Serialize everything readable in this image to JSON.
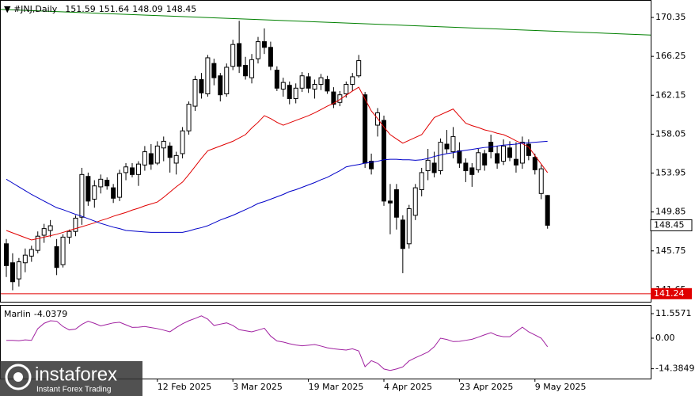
{
  "chart_data": {
    "type": "candlestick",
    "title": "#JNJ,Daily",
    "categories": [
      null,
      null,
      null,
      null,
      null,
      null,
      null,
      null,
      null,
      null,
      null,
      null,
      null,
      null,
      null,
      null,
      null,
      null,
      null,
      null,
      null,
      null,
      null,
      null,
      "12 Feb 2025",
      null,
      null,
      null,
      null,
      null,
      null,
      null,
      null,
      null,
      null,
      null,
      "3 Mar 2025",
      null,
      null,
      null,
      null,
      null,
      null,
      null,
      null,
      null,
      null,
      null,
      "19 Mar 2025",
      null,
      null,
      null,
      null,
      null,
      null,
      null,
      null,
      null,
      null,
      null,
      "4 Apr 2025",
      null,
      null,
      null,
      null,
      null,
      null,
      null,
      null,
      null,
      null,
      null,
      "23 Apr 2025",
      null,
      null,
      null,
      null,
      null,
      null,
      null,
      null,
      null,
      null,
      null,
      "9 May 2025",
      null,
      null
    ],
    "open": [
      146.5,
      144.5,
      142.8,
      144.5,
      145.2,
      145.8,
      147.4,
      147.9,
      146.2,
      144.3,
      147.2,
      147.8,
      149.3,
      153.6,
      151.2,
      152.5,
      153.2,
      152.4,
      151.4,
      154,
      154.5,
      153.8,
      154.8,
      156,
      155,
      156.6,
      156.8,
      155,
      156,
      158.4,
      161,
      163.8,
      162.3,
      165.5,
      164.2,
      162.3,
      165.2,
      167.6,
      165.3,
      164,
      166,
      167.8,
      167.2,
      164.8,
      162.8,
      163.2,
      161.8,
      162.9,
      164.1,
      162.8,
      163.3,
      163.8,
      162.5,
      161.4,
      162.3,
      163.3,
      164.2,
      162.2,
      155.2,
      159,
      159.5,
      151,
      152.2,
      149,
      146.5,
      149.5,
      152.2,
      154.2,
      155,
      154.2,
      157,
      156.2,
      156.3,
      155,
      154.5,
      154.3,
      156,
      157.2,
      156,
      155.2,
      156.6,
      155.4,
      155,
      157,
      155.6,
      151.8,
      151.59
    ],
    "high": [
      147,
      145.5,
      145,
      146,
      146.3,
      147.8,
      148.6,
      149,
      147,
      147.5,
      148,
      149.5,
      154.5,
      154,
      153.2,
      153.8,
      153.5,
      152.8,
      154.3,
      155,
      155,
      155.2,
      156.8,
      157,
      157.3,
      157.8,
      157.2,
      156.2,
      158.8,
      161.5,
      164.2,
      164.5,
      166.4,
      166,
      164.5,
      165.5,
      168,
      170,
      166.2,
      166.5,
      168.3,
      169.2,
      167.8,
      165.2,
      164,
      163.6,
      163.4,
      164.6,
      164.5,
      163.8,
      164.4,
      164.2,
      163,
      162.6,
      163.6,
      164.5,
      166.4,
      162.5,
      156,
      160.8,
      160,
      152.8,
      152.8,
      149.5,
      150.6,
      152.8,
      154.5,
      156.5,
      156.2,
      157.6,
      158.5,
      158.8,
      157.2,
      155.5,
      155,
      156.5,
      156.4,
      158,
      156.8,
      157.5,
      157.3,
      157.2,
      157.8,
      157.5,
      156,
      154.8,
      151.64
    ],
    "low": [
      143,
      141.6,
      142,
      143.5,
      144.6,
      145.5,
      146.6,
      147.2,
      143.2,
      144,
      146.5,
      147.3,
      148.5,
      150.5,
      150.3,
      151.8,
      152.2,
      150.8,
      151,
      153.2,
      153.5,
      152.6,
      154.2,
      154.3,
      154.8,
      155.2,
      154,
      153.8,
      155.5,
      158,
      160.5,
      161.8,
      162,
      163.2,
      161.5,
      162,
      164.8,
      164.5,
      163.8,
      163.4,
      165.5,
      166.5,
      164.8,
      162.6,
      162,
      161.2,
      161.3,
      162.5,
      162.4,
      161.8,
      162.7,
      162.3,
      160.8,
      161,
      161.9,
      162.6,
      164,
      154.5,
      153.8,
      157.8,
      150.5,
      147.5,
      148,
      143.4,
      146,
      149,
      151.5,
      153.2,
      153.5,
      153.8,
      156,
      155.5,
      154.5,
      153,
      152.5,
      154,
      154.2,
      155.5,
      154.4,
      154.8,
      155.2,
      154,
      154.4,
      155.3,
      153.8,
      151.2,
      148.09
    ],
    "close": [
      144.2,
      142.5,
      144.6,
      145.3,
      145.9,
      147.3,
      148.1,
      148.4,
      144,
      147.2,
      147.8,
      149.2,
      153.8,
      151,
      152.6,
      153.3,
      152.6,
      151.3,
      153.9,
      154.6,
      153.8,
      154.9,
      156.2,
      154.9,
      156.8,
      157.3,
      155.6,
      155.8,
      158.4,
      161.2,
      163.8,
      162.4,
      166.1,
      164,
      162.2,
      165.1,
      167.5,
      165.2,
      164.2,
      165.9,
      167.8,
      167.2,
      165.2,
      162.9,
      163.5,
      161.8,
      162.9,
      164.2,
      162.9,
      163.3,
      164,
      162.6,
      161.2,
      162.2,
      163.3,
      164.1,
      165.8,
      155,
      154.4,
      160.3,
      151,
      150.8,
      149.3,
      146,
      150.2,
      152.4,
      154,
      155.3,
      154,
      157.2,
      156.5,
      157.8,
      155,
      154.2,
      153.8,
      156.1,
      154.8,
      156.2,
      155,
      156.8,
      155.6,
      154.8,
      157.2,
      155.8,
      154.3,
      154.4,
      148.45
    ],
    "up_color": "#ffffff",
    "down_color": "#000000",
    "ylim": [
      140.39,
      172.19
    ],
    "yticks": [
      170.35,
      166.25,
      162.15,
      158.05,
      153.95,
      149.85,
      145.75,
      141.65
    ],
    "series": [
      {
        "color": "#e00000",
        "values": [
          147.9,
          147.65,
          147.4,
          147.15,
          146.9,
          147.05,
          147.2,
          147.35,
          147.5,
          147.7,
          147.9,
          148.1,
          148.3,
          148.5,
          148.7,
          148.95,
          149.15,
          149.4,
          149.6,
          149.8,
          150.05,
          150.25,
          150.5,
          150.7,
          150.9,
          151.4,
          151.95,
          152.5,
          153,
          153.8,
          154.65,
          155.5,
          156.3,
          156.55,
          156.8,
          157.05,
          157.3,
          157.65,
          158,
          158.7,
          159.3,
          160,
          159.7,
          159.3,
          159,
          159.25,
          159.5,
          159.75,
          160,
          160.3,
          160.65,
          161,
          161.3,
          161.7,
          162.15,
          162.6,
          163,
          161.75,
          160.5,
          159.7,
          158.8,
          158,
          157.55,
          157.1,
          157.4,
          157.7,
          158,
          158.9,
          159.8,
          160.1,
          160.4,
          160.7,
          159.95,
          159.2,
          158.95,
          158.75,
          158.5,
          158.35,
          158.15,
          158,
          157.7,
          157.35,
          157.05,
          156.7,
          155.8,
          154.9,
          154
        ]
      },
      {
        "color": "#0000c8",
        "values": [
          153.3,
          152.9,
          152.5,
          152.1,
          151.7,
          151.35,
          151,
          150.65,
          150.3,
          150.1,
          149.85,
          149.6,
          149.4,
          149.15,
          148.9,
          148.65,
          148.45,
          148.25,
          148.1,
          147.9,
          147.85,
          147.8,
          147.75,
          147.7,
          147.7,
          147.7,
          147.7,
          147.7,
          147.7,
          147.85,
          148.05,
          148.2,
          148.4,
          148.7,
          149,
          149.25,
          149.5,
          149.8,
          150.1,
          150.4,
          150.75,
          150.95,
          151.2,
          151.45,
          151.7,
          152,
          152.2,
          152.45,
          152.7,
          152.95,
          153.25,
          153.5,
          153.85,
          154.2,
          154.6,
          154.75,
          154.85,
          155,
          155.1,
          155.2,
          155.35,
          155.4,
          155.4,
          155.35,
          155.35,
          155.3,
          155.35,
          155.5,
          155.7,
          155.85,
          156,
          156.1,
          156.25,
          156.35,
          156.45,
          156.55,
          156.65,
          156.7,
          156.8,
          156.9,
          156.95,
          157,
          157.1,
          157.15,
          157.2,
          157.25,
          157.3
        ]
      }
    ],
    "trendline": {
      "color": "#008000",
      "values": [
        171.2,
        168.5
      ]
    },
    "levels": [
      {
        "value": 141.24,
        "color": "#e00000"
      }
    ],
    "indicator": {
      "type": "line",
      "name": "Marlin",
      "color": "#a020a0",
      "values": [
        -1,
        -1,
        -1.2,
        -0.8,
        -1,
        4.5,
        7,
        8.2,
        8,
        5.5,
        3.9,
        4.3,
        6.5,
        8,
        7,
        5.8,
        6.5,
        7.2,
        7.5,
        6.3,
        5.1,
        5.2,
        5.5,
        5,
        4.5,
        3.8,
        3,
        5,
        6.8,
        8.2,
        9.3,
        10.5,
        9,
        6,
        6.6,
        7.2,
        6,
        4,
        3.5,
        3,
        3.8,
        4.7,
        1,
        -1.3,
        -1.8,
        -2.6,
        -3.2,
        -3.6,
        -3.3,
        -3,
        -3.7,
        -4.5,
        -5,
        -5.3,
        -5.6,
        -5,
        -6,
        -13.4,
        -10.6,
        -11.8,
        -14.5,
        -15.2,
        -14.5,
        -13.5,
        -10.7,
        -9.2,
        -7.9,
        -6.5,
        -4,
        0,
        -0.6,
        -1.6,
        -1.5,
        -1,
        -0.5,
        0.5,
        1.6,
        2.6,
        1.3,
        0.7,
        0.7,
        3,
        5.2,
        3,
        1.5,
        0,
        -4.0379
      ],
      "ylim": [
        -19.01,
        15.29
      ],
      "yticks": [
        11.5571,
        {
          "value": 0,
          "label": "0.00"
        },
        -14.3849
      ]
    },
    "watermark": {
      "name": "instaforex",
      "tagline": "Instant Forex Trading"
    }
  }
}
